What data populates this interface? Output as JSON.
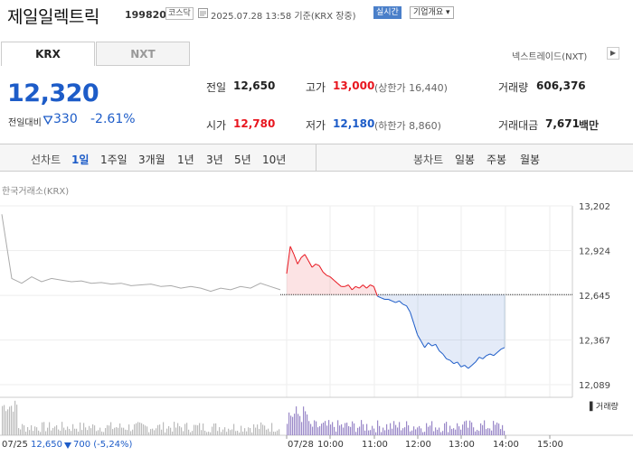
{
  "header": {
    "name": "제일일렉트릭",
    "code": "199820",
    "market": "코스닥",
    "datetime": "2025.07.28 13:58 기준(KRX 장중)",
    "realtime": "실시간",
    "overview": "기업개요 ▾"
  },
  "tabs": {
    "krx": "KRX",
    "nxt": "NXT",
    "nxt_trade": "넥스트레이드(NXT)"
  },
  "price": {
    "current": "12,320",
    "change_label": "전일대비",
    "change_abs": "330",
    "change_pct": "-2.61%"
  },
  "stats": {
    "prev_close_label": "전일",
    "prev_close": "12,650",
    "high_label": "고가",
    "high": "13,000",
    "upper_limit": "(상한가 16,440)",
    "volume_label": "거래량",
    "volume": "606,376",
    "open_label": "시가",
    "open": "12,780",
    "low_label": "저가",
    "low": "12,180",
    "lower_limit": "(하한가 8,860)",
    "turnover_label": "거래대금",
    "turnover": "7,671",
    "turnover_unit": "백만"
  },
  "toolbar": {
    "line_label": "선차트",
    "line_periods": [
      "1일",
      "1주일",
      "3개월",
      "1년",
      "3년",
      "5년",
      "10년"
    ],
    "candle_label": "봉차트",
    "candle_periods": [
      "일봉",
      "주봉",
      "월봉"
    ]
  },
  "chart": {
    "source": "한국거래소(KRX)",
    "volume_legend": "거래량"
  },
  "bottom": {
    "prev_date": "07/25",
    "prev_close": "12,650",
    "prev_change": "700 (-5,24%)"
  },
  "colors": {
    "up": "#e8161f",
    "down": "#1d5cc8",
    "prev_day": "#aaaaaa",
    "volume": "#9a88c8"
  },
  "chart_data": {
    "type": "line",
    "y_ticks": [
      "13,202",
      "12,924",
      "12,645",
      "12,367",
      "12,089"
    ],
    "x_ticks": [
      "07/28",
      "10:00",
      "11:00",
      "12:00",
      "13:00",
      "14:00",
      "15:00"
    ],
    "ylim": [
      12089,
      13202
    ],
    "baseline": 12650,
    "prev_day_series": {
      "name": "07/25",
      "points": [
        [
          0,
          13150
        ],
        [
          1,
          12750
        ],
        [
          2,
          12720
        ],
        [
          3,
          12760
        ],
        [
          4,
          12730
        ],
        [
          5,
          12750
        ],
        [
          6,
          12740
        ],
        [
          7,
          12730
        ],
        [
          8,
          12735
        ],
        [
          9,
          12720
        ],
        [
          10,
          12725
        ],
        [
          11,
          12715
        ],
        [
          12,
          12720
        ],
        [
          13,
          12705
        ],
        [
          14,
          12710
        ],
        [
          15,
          12715
        ],
        [
          16,
          12700
        ],
        [
          17,
          12705
        ],
        [
          18,
          12690
        ],
        [
          19,
          12700
        ],
        [
          20,
          12690
        ],
        [
          21,
          12670
        ],
        [
          22,
          12690
        ],
        [
          23,
          12680
        ],
        [
          24,
          12700
        ],
        [
          25,
          12690
        ],
        [
          26,
          12720
        ],
        [
          27,
          12700
        ],
        [
          28,
          12680
        ]
      ]
    },
    "today_series": {
      "name": "07/28",
      "times": [
        "09:00",
        "09:05",
        "09:10",
        "09:15",
        "09:20",
        "09:25",
        "09:30",
        "09:35",
        "09:40",
        "09:45",
        "09:50",
        "09:55",
        "10:00",
        "10:05",
        "10:10",
        "10:15",
        "10:20",
        "10:25",
        "10:30",
        "10:35",
        "10:40",
        "10:45",
        "10:50",
        "10:55",
        "11:00",
        "11:05",
        "11:10",
        "11:15",
        "11:20",
        "11:25",
        "11:30",
        "11:35",
        "11:40",
        "11:45",
        "11:50",
        "11:55",
        "12:00",
        "12:05",
        "12:10",
        "12:15",
        "12:20",
        "12:25",
        "12:30",
        "12:35",
        "12:40",
        "12:45",
        "12:50",
        "12:55",
        "13:00",
        "13:05",
        "13:10",
        "13:15",
        "13:20",
        "13:25",
        "13:30",
        "13:35",
        "13:40",
        "13:45",
        "13:50",
        "13:55",
        "13:58"
      ],
      "values": [
        12780,
        12950,
        12900,
        12840,
        12880,
        12900,
        12860,
        12820,
        12840,
        12830,
        12790,
        12770,
        12760,
        12740,
        12720,
        12700,
        12700,
        12710,
        12680,
        12700,
        12690,
        12710,
        12690,
        12710,
        12700,
        12640,
        12630,
        12620,
        12620,
        12610,
        12600,
        12610,
        12590,
        12580,
        12540,
        12470,
        12400,
        12360,
        12320,
        12350,
        12330,
        12340,
        12300,
        12280,
        12250,
        12240,
        12220,
        12230,
        12200,
        12210,
        12190,
        12210,
        12230,
        12260,
        12250,
        12270,
        12280,
        12270,
        12290,
        12310,
        12320
      ]
    },
    "volume_note": "volume bars shown without axis values"
  }
}
